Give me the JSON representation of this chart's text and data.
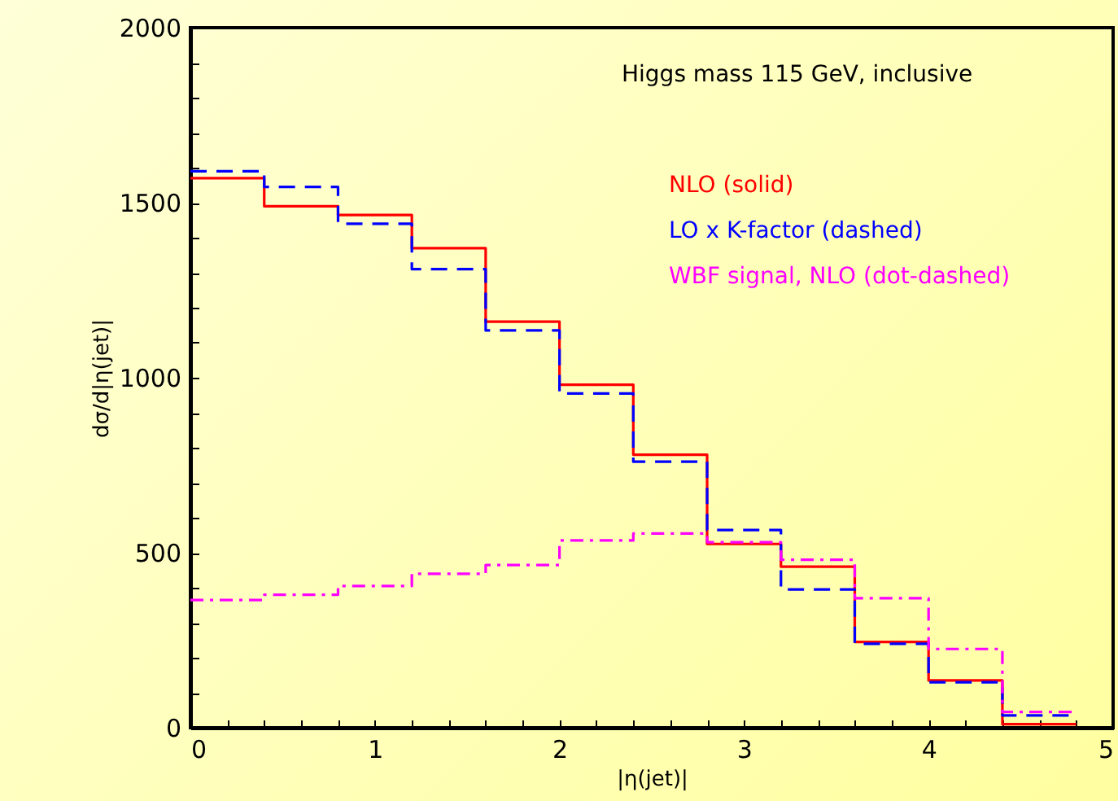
{
  "chart_data": {
    "type": "histogram",
    "xlabel": "|η(jet)|",
    "ylabel": "dσ/d|η(jet)|",
    "annotations": [
      "Higgs mass 115 GeV, inclusive"
    ],
    "bins": [
      0,
      0.4,
      0.8,
      1.2,
      1.6,
      2.0,
      2.4,
      2.8,
      3.2,
      3.6,
      4.0,
      4.4,
      4.8
    ],
    "series": [
      {
        "name": "NLO (solid)",
        "color": "#ff0000",
        "line_style": "solid",
        "values": [
          1570,
          1490,
          1465,
          1370,
          1160,
          980,
          780,
          525,
          460,
          245,
          135,
          10
        ]
      },
      {
        "name": "LO x K-factor (dashed)",
        "color": "#0000ff",
        "line_style": "dashed",
        "values": [
          1590,
          1545,
          1440,
          1310,
          1135,
          955,
          760,
          565,
          395,
          240,
          130,
          35
        ]
      },
      {
        "name": "WBF signal, NLO (dot-dashed)",
        "color": "#ff00ff",
        "line_style": "dotted",
        "values": [
          365,
          380,
          405,
          440,
          465,
          535,
          555,
          530,
          480,
          370,
          225,
          45
        ]
      }
    ],
    "xlim": [
      0,
      5
    ],
    "ylim": [
      0,
      2000
    ],
    "xticks": [
      0,
      {
        "value": 0.2,
        "label": null
      },
      {
        "value": 0.4,
        "label": null
      },
      {
        "value": 0.6,
        "label": null
      },
      {
        "value": 0.8,
        "label": null
      },
      1,
      {
        "value": 1.2,
        "label": null
      },
      {
        "value": 1.4,
        "label": null
      },
      {
        "value": 1.6,
        "label": null
      },
      {
        "value": 1.8,
        "label": null
      },
      2,
      {
        "value": 2.2,
        "label": null
      },
      {
        "value": 2.4,
        "label": null
      },
      {
        "value": 2.6,
        "label": null
      },
      {
        "value": 2.8,
        "label": null
      },
      3,
      {
        "value": 3.2,
        "label": null
      },
      {
        "value": 3.4,
        "label": null
      },
      {
        "value": 3.6,
        "label": null
      },
      {
        "value": 3.8,
        "label": null
      },
      4,
      {
        "value": 4.2,
        "label": null
      },
      {
        "value": 4.4,
        "label": null
      },
      {
        "value": 4.6,
        "label": null
      },
      {
        "value": 4.8,
        "label": null
      },
      5
    ],
    "yticks": [
      0,
      {
        "value": 100,
        "label": null
      },
      {
        "value": 200,
        "label": null
      },
      {
        "value": 300,
        "label": null
      },
      {
        "value": 400,
        "label": null
      },
      500,
      {
        "value": 600,
        "label": null
      },
      {
        "value": 700,
        "label": null
      },
      {
        "value": 800,
        "label": null
      },
      {
        "value": 900,
        "label": null
      },
      1000,
      {
        "value": 1100,
        "label": null
      },
      {
        "value": 1200,
        "label": null
      },
      {
        "value": 1300,
        "label": null
      },
      {
        "value": 1400,
        "label": null
      },
      1500,
      {
        "value": 1600,
        "label": null
      },
      {
        "value": 1700,
        "label": null
      },
      {
        "value": 1800,
        "label": null
      },
      {
        "value": 1900,
        "label": null
      },
      2000
    ],
    "grid": false,
    "legend": "top right"
  }
}
